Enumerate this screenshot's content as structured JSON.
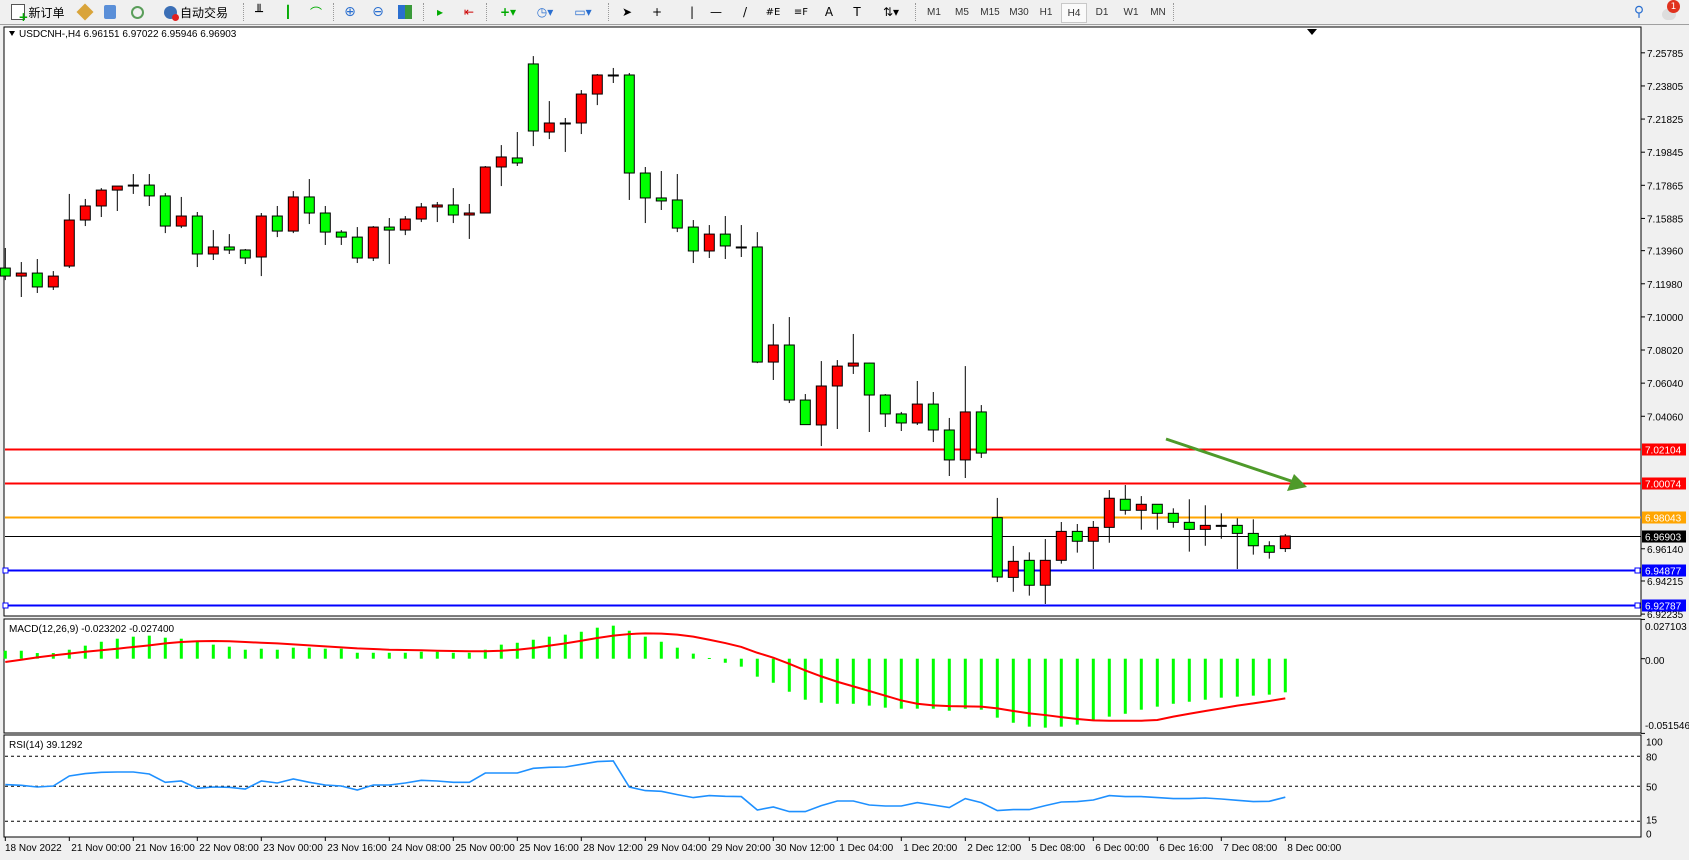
{
  "toolbar": {
    "new_order_label": "新订单",
    "autotrade_label": "自动交易",
    "timeframes": [
      "M1",
      "M5",
      "M15",
      "M30",
      "H1",
      "H4",
      "D1",
      "W1",
      "MN"
    ],
    "active_timeframe": "H4",
    "notification_count": "1"
  },
  "chart_header": "USDCNH-,H4  6.96151 6.97022 6.95946 6.96903",
  "colors": {
    "bull": "#ff0000",
    "bear": "#00ff00",
    "macd_hist": "#00ff00",
    "macd_signal": "#ff0000",
    "rsi": "#1e90ff",
    "resistance": "#ff0000",
    "mid": "#ffa500",
    "support": "#0000ff",
    "current": "#000000",
    "arrow": "#4e9a2a"
  },
  "price_axis_labels": [
    "7.25785",
    "7.23805",
    "7.21825",
    "7.19845",
    "7.17865",
    "7.15885",
    "7.13960",
    "7.11980",
    "7.10000",
    "7.08020",
    "7.06040",
    "7.04060",
    "6.96140",
    "6.94215",
    "6.92235"
  ],
  "levels": [
    {
      "price": "7.02104",
      "color": "#ff0000",
      "kind": "resistance"
    },
    {
      "price": "7.00074",
      "color": "#ff0000",
      "kind": "resistance"
    },
    {
      "price": "6.98043",
      "color": "#ffa500",
      "kind": "mid"
    },
    {
      "price": "6.96903",
      "color": "#000000",
      "kind": "current-price"
    },
    {
      "price": "6.94877",
      "color": "#0000ff",
      "kind": "support"
    },
    {
      "price": "6.92787",
      "color": "#0000ff",
      "kind": "support"
    }
  ],
  "annotation": {
    "type": "arrow",
    "direction": "down-right",
    "color": "#4e9a2a"
  },
  "time_labels": [
    "18 Nov 2022",
    "21 Nov 00:00",
    "21 Nov 16:00",
    "22 Nov 08:00",
    "23 Nov 00:00",
    "23 Nov 16:00",
    "24 Nov 08:00",
    "25 Nov 00:00",
    "25 Nov 16:00",
    "28 Nov 12:00",
    "29 Nov 04:00",
    "29 Nov 20:00",
    "30 Nov 12:00",
    "1 Dec 04:00",
    "1 Dec 20:00",
    "2 Dec 12:00",
    "5 Dec 08:00",
    "6 Dec 00:00",
    "6 Dec 16:00",
    "7 Dec 08:00",
    "8 Dec 00:00"
  ],
  "macd": {
    "label": "MACD(12,26,9) -0.023202 -0.027400",
    "axis_labels": [
      "0.027103",
      "0.00",
      "-0.051546"
    ],
    "range": [
      -0.051546,
      0.027103
    ]
  },
  "rsi": {
    "label": "RSI(14) 39.1292",
    "axis_labels": [
      "100",
      "80",
      "50",
      "15",
      "0"
    ],
    "levels": [
      80,
      50,
      15
    ]
  },
  "chart_data": {
    "type": "candlestick",
    "symbol": "USDCNH-",
    "timeframe": "H4",
    "ylim": [
      6.92235,
      7.25785
    ],
    "ohlc": [
      [
        7.1292,
        7.1412,
        7.122,
        7.1244
      ],
      [
        7.1244,
        7.1328,
        7.1119,
        7.1262
      ],
      [
        7.1262,
        7.1346,
        7.1143,
        7.1179
      ],
      [
        7.1179,
        7.1274,
        7.1161,
        7.1244
      ],
      [
        7.1304,
        7.1735,
        7.1292,
        7.1579
      ],
      [
        7.1579,
        7.1705,
        7.1543,
        7.1663
      ],
      [
        7.1663,
        7.177,
        7.1597,
        7.1758
      ],
      [
        7.1758,
        7.1782,
        7.1633,
        7.1782
      ],
      [
        7.1782,
        7.1854,
        7.1735,
        7.1788
      ],
      [
        7.1788,
        7.1854,
        7.1663,
        7.1723
      ],
      [
        7.1723,
        7.174,
        7.1501,
        7.1543
      ],
      [
        7.1543,
        7.1717,
        7.1531,
        7.1603
      ],
      [
        7.1603,
        7.1627,
        7.1298,
        7.1376
      ],
      [
        7.1376,
        7.1519,
        7.134,
        7.1418
      ],
      [
        7.1418,
        7.1495,
        7.1376,
        7.14
      ],
      [
        7.14,
        7.1406,
        7.1316,
        7.1352
      ],
      [
        7.1358,
        7.1621,
        7.1244,
        7.1603
      ],
      [
        7.1603,
        7.1663,
        7.1477,
        7.1513
      ],
      [
        7.1513,
        7.1752,
        7.1501,
        7.1717
      ],
      [
        7.1717,
        7.1824,
        7.1555,
        7.1621
      ],
      [
        7.1621,
        7.1663,
        7.143,
        7.1507
      ],
      [
        7.1507,
        7.1519,
        7.143,
        7.1477
      ],
      [
        7.1477,
        7.1537,
        7.1322,
        7.1352
      ],
      [
        7.1352,
        7.1543,
        7.1334,
        7.1537
      ],
      [
        7.1537,
        7.1591,
        7.1316,
        7.1519
      ],
      [
        7.1519,
        7.1603,
        7.1489,
        7.1585
      ],
      [
        7.1585,
        7.1681,
        7.1567,
        7.1657
      ],
      [
        7.1657,
        7.1687,
        7.1567,
        7.1669
      ],
      [
        7.1669,
        7.177,
        7.1561,
        7.1609
      ],
      [
        7.1609,
        7.1675,
        7.1466,
        7.1621
      ],
      [
        7.1621,
        7.1902,
        7.1621,
        7.1896
      ],
      [
        7.1896,
        7.2027,
        7.1782,
        7.1956
      ],
      [
        7.195,
        7.2105,
        7.1902,
        7.192
      ],
      [
        7.2512,
        7.2559,
        7.2021,
        7.2111
      ],
      [
        7.2105,
        7.229,
        7.2063,
        7.2159
      ],
      [
        7.2159,
        7.2189,
        7.1986,
        7.2156
      ],
      [
        7.2159,
        7.2356,
        7.2093,
        7.2332
      ],
      [
        7.2332,
        7.2452,
        7.2266,
        7.2446
      ],
      [
        7.2446,
        7.2488,
        7.2398,
        7.2443
      ],
      [
        7.2446,
        7.2458,
        7.1699,
        7.186
      ],
      [
        7.186,
        7.1896,
        7.1561,
        7.1711
      ],
      [
        7.1711,
        7.1872,
        7.1639,
        7.1693
      ],
      [
        7.1699,
        7.1854,
        7.1507,
        7.1531
      ],
      [
        7.1537,
        7.1579,
        7.1322,
        7.1394
      ],
      [
        7.1394,
        7.1549,
        7.1352,
        7.1495
      ],
      [
        7.1495,
        7.1603,
        7.1346,
        7.1424
      ],
      [
        7.1418,
        7.1549,
        7.1358,
        7.1415
      ],
      [
        7.1418,
        7.1507,
        7.0724,
        7.073
      ],
      [
        7.073,
        7.0958,
        7.0623,
        7.0832
      ],
      [
        7.0832,
        7.0999,
        7.0485,
        7.0503
      ],
      [
        7.0503,
        7.0539,
        7.0354,
        7.0356
      ],
      [
        7.0354,
        7.0736,
        7.0228,
        7.0587
      ],
      [
        7.0587,
        7.0742,
        7.033,
        7.0706
      ],
      [
        7.0706,
        7.0898,
        7.0659,
        7.0724
      ],
      [
        7.0724,
        7.0726,
        7.0312,
        7.0533
      ],
      [
        7.0533,
        7.0539,
        7.0342,
        7.042
      ],
      [
        7.042,
        7.0432,
        7.0318,
        7.0366
      ],
      [
        7.0366,
        7.0617,
        7.0354,
        7.0479
      ],
      [
        7.0479,
        7.0551,
        7.0252,
        7.0324
      ],
      [
        7.0324,
        7.0396,
        7.0049,
        7.0145
      ],
      [
        7.0145,
        7.0706,
        7.0037,
        7.0432
      ],
      [
        7.0432,
        7.0473,
        7.0157,
        7.0186
      ],
      [
        6.98,
        6.9918,
        6.9415,
        6.9445
      ],
      [
        6.9443,
        6.9631,
        6.9357,
        6.9539
      ],
      [
        6.9545,
        6.9593,
        6.9334,
        6.9396
      ],
      [
        6.9396,
        6.9672,
        6.9284,
        6.9545
      ],
      [
        6.9545,
        6.9774,
        6.9525,
        6.9718
      ],
      [
        6.9718,
        6.9762,
        6.9591,
        6.9659
      ],
      [
        6.9659,
        6.978,
        6.9493,
        6.9742
      ],
      [
        6.9742,
        6.9965,
        6.965,
        6.9916
      ],
      [
        6.991,
        6.9995,
        6.9818,
        6.9844
      ],
      [
        6.9844,
        6.9929,
        6.9728,
        6.988
      ],
      [
        6.988,
        6.988,
        6.9728,
        6.9826
      ],
      [
        6.9826,
        6.9856,
        6.974,
        6.9772
      ],
      [
        6.9772,
        6.991,
        6.9597,
        6.973
      ],
      [
        6.973,
        6.9874,
        6.9632,
        6.9754
      ],
      [
        6.9754,
        6.9826,
        6.9674,
        6.9752
      ],
      [
        6.9754,
        6.9796,
        6.9493,
        6.9706
      ],
      [
        6.9706,
        6.979,
        6.9579,
        6.9632
      ],
      [
        6.9632,
        6.9659,
        6.9555,
        6.9593
      ],
      [
        6.96151,
        6.97022,
        6.95946,
        6.96903
      ]
    ],
    "macd_main": [
      0.0055,
      0.0055,
      0.0039,
      0.0039,
      0.0062,
      0.009,
      0.0117,
      0.0138,
      0.0152,
      0.0159,
      0.0145,
      0.0138,
      0.0117,
      0.0097,
      0.0083,
      0.0062,
      0.0069,
      0.0062,
      0.0076,
      0.0076,
      0.0069,
      0.0069,
      0.0041,
      0.0041,
      0.0041,
      0.0041,
      0.0048,
      0.0048,
      0.0041,
      0.0041,
      0.0062,
      0.0097,
      0.011,
      0.0131,
      0.0152,
      0.0166,
      0.0186,
      0.0214,
      0.0228,
      0.0193,
      0.0152,
      0.0117,
      0.0076,
      0.0035,
      0.0005,
      -0.0028,
      -0.0055,
      -0.0124,
      -0.0166,
      -0.0228,
      -0.0283,
      -0.0304,
      -0.0311,
      -0.0311,
      -0.0324,
      -0.0338,
      -0.0345,
      -0.0345,
      -0.0345,
      -0.0359,
      -0.0345,
      -0.0352,
      -0.0407,
      -0.0442,
      -0.0469,
      -0.0476,
      -0.0469,
      -0.0455,
      -0.0428,
      -0.04,
      -0.038,
      -0.0352,
      -0.0331,
      -0.0311,
      -0.0297,
      -0.0283,
      -0.0269,
      -0.0262,
      -0.0255,
      -0.0248,
      -0.0232
    ],
    "macd_signal": [
      -0.0023,
      -0.0007,
      0.0009,
      0.0023,
      0.0035,
      0.0048,
      0.0058,
      0.0069,
      0.0081,
      0.0092,
      0.0106,
      0.0115,
      0.012,
      0.0122,
      0.012,
      0.0115,
      0.011,
      0.0106,
      0.0099,
      0.0092,
      0.0085,
      0.0078,
      0.0071,
      0.0067,
      0.0062,
      0.006,
      0.0058,
      0.0055,
      0.0053,
      0.0051,
      0.0051,
      0.0055,
      0.0062,
      0.0074,
      0.009,
      0.0106,
      0.0124,
      0.0143,
      0.0159,
      0.017,
      0.0175,
      0.0173,
      0.0166,
      0.0152,
      0.0131,
      0.0108,
      0.0081,
      0.0041,
      0.0007,
      -0.0035,
      -0.0081,
      -0.0122,
      -0.0159,
      -0.0191,
      -0.0223,
      -0.0255,
      -0.0288,
      -0.0311,
      -0.0322,
      -0.0327,
      -0.0329,
      -0.0331,
      -0.0343,
      -0.0361,
      -0.0377,
      -0.0389,
      -0.0403,
      -0.0416,
      -0.0426,
      -0.0428,
      -0.0428,
      -0.0428,
      -0.0423,
      -0.04,
      -0.038,
      -0.0361,
      -0.0343,
      -0.0324,
      -0.0308,
      -0.0292,
      -0.0274
    ],
    "rsi": [
      51.7,
      51,
      49.3,
      50.3,
      60.3,
      62.7,
      64,
      64.3,
      64.3,
      62.3,
      54,
      55.3,
      48,
      49.3,
      49,
      47.3,
      55.3,
      53.3,
      57.3,
      54,
      51.3,
      50.3,
      46.3,
      51.3,
      51.3,
      53.3,
      56,
      55.3,
      54,
      54,
      63.3,
      63.3,
      63.3,
      68,
      69,
      69.3,
      72,
      74.7,
      75.3,
      49.3,
      45.7,
      45,
      41.7,
      38.7,
      40.7,
      40,
      39.7,
      26.3,
      29.3,
      24.7,
      24.7,
      30.7,
      35.3,
      35.3,
      31.3,
      30.3,
      30.3,
      33.7,
      31.3,
      28.7,
      37.7,
      33.7,
      25.7,
      26.7,
      26.7,
      30.7,
      34.3,
      34.7,
      36.3,
      40.7,
      39.7,
      39.7,
      38.7,
      37.7,
      37.7,
      38.3,
      37.3,
      36,
      34.7,
      35,
      39.13
    ]
  }
}
